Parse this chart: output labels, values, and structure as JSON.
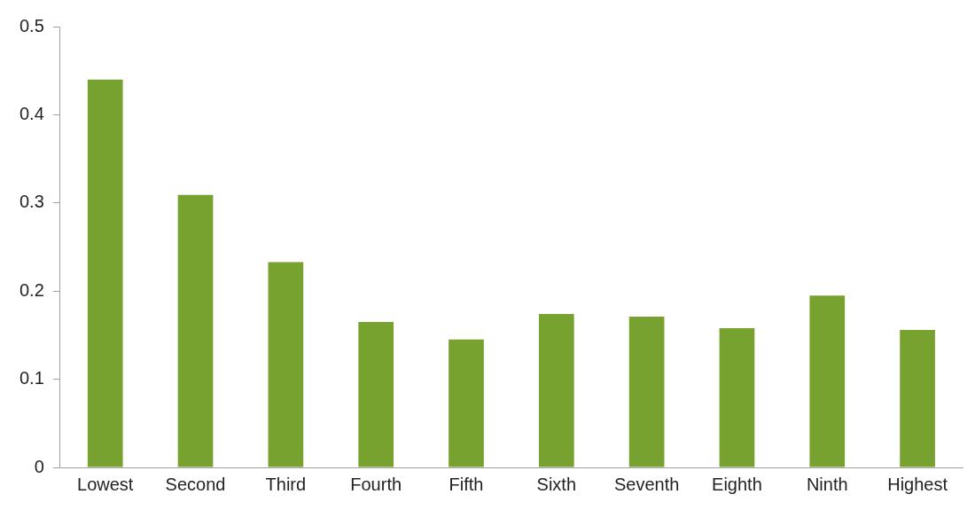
{
  "chart_data": {
    "type": "bar",
    "categories": [
      "Lowest",
      "Second",
      "Third",
      "Fourth",
      "Fifth",
      "Sixth",
      "Seventh",
      "Eighth",
      "Ninth",
      "Highest"
    ],
    "values": [
      0.44,
      0.309,
      0.233,
      0.165,
      0.145,
      0.174,
      0.171,
      0.158,
      0.195,
      0.156
    ],
    "color": "#78a22f",
    "ylim": [
      0,
      0.5
    ],
    "yticks": [
      0,
      0.1,
      0.2,
      0.3,
      0.4,
      0.5
    ],
    "grid": false,
    "legend": false
  }
}
